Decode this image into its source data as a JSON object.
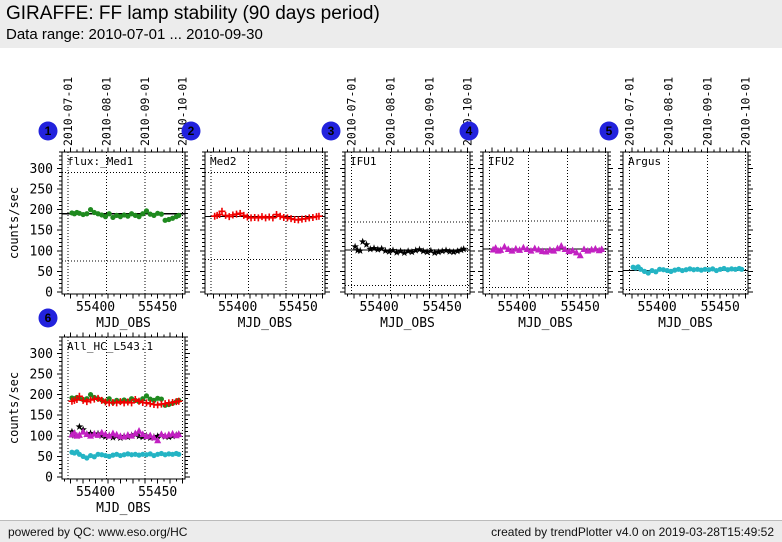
{
  "header": {
    "title": "GIRAFFE: FF lamp stability (90 days period)",
    "subtitle": "Data range: 2010-07-01 ... 2010-09-30"
  },
  "footer": {
    "left": "powered by QC: www.eso.org/HC",
    "right": "created by trendPlotter v4.0 on 2019-03-28T15:49:52"
  },
  "colors": {
    "badge_blue": "#2222dd",
    "header_bg": "#ececec",
    "reference_line": "#000000"
  },
  "chart_data": {
    "type": "scatter",
    "title": "GIRAFFE: FF lamp stability (90 days period)",
    "xlabel": "MJD_OBS",
    "ylabel": "counts/sec",
    "xlim": [
      55373,
      55472
    ],
    "ylim": [
      -5,
      340
    ],
    "xticks": [
      55400,
      55450
    ],
    "yticks": [
      0,
      50,
      100,
      150,
      200,
      250,
      300
    ],
    "grid": "dotted",
    "date_gridlines": [
      {
        "label": "2010-07-01",
        "mjd": 55378
      },
      {
        "label": "2010-08-01",
        "mjd": 55409
      },
      {
        "label": "2010-09-01",
        "mjd": 55440
      },
      {
        "label": "2010-10-01",
        "mjd": 55470
      }
    ],
    "x": [
      55381,
      55383,
      55385,
      55387,
      55390,
      55393,
      55396,
      55399,
      55402,
      55405,
      55408,
      55411,
      55414,
      55417,
      55420,
      55423,
      55426,
      55429,
      55432,
      55435,
      55438,
      55441,
      55444,
      55447,
      55450,
      55453,
      55456,
      55459,
      55462,
      55465,
      55467
    ],
    "series": {
      "med1": {
        "name": "Med1",
        "marker": "circle",
        "color": "#1f8a1f",
        "values": [
          192,
          190,
          193,
          191,
          188,
          190,
          200,
          193,
          190,
          187,
          183,
          190,
          181,
          186,
          183,
          187,
          184,
          190,
          186,
          183,
          190,
          197,
          189,
          186,
          191,
          189,
          174,
          176,
          179,
          183,
          186
        ]
      },
      "med2": {
        "name": "Med2",
        "marker": "plus",
        "color": "#f00000",
        "values": [
          184,
          186,
          188,
          196,
          186,
          183,
          187,
          189,
          191,
          186,
          182,
          180,
          181,
          180,
          183,
          180,
          182,
          180,
          188,
          184,
          181,
          180,
          178,
          176,
          175,
          177,
          178,
          180,
          181,
          183,
          184
        ]
      },
      "ifu1": {
        "name": "IFU1",
        "marker": "star",
        "color": "#000000",
        "values": [
          110,
          101,
          100,
          122,
          115,
          104,
          106,
          103,
          105,
          100,
          98,
          101,
          96,
          99,
          95,
          99,
          97,
          101,
          103,
          99,
          97,
          100,
          95,
          97,
          99,
          101,
          98,
          97,
          99,
          102,
          104
        ]
      },
      "ifu2": {
        "name": "IFU2",
        "marker": "triangle",
        "color": "#c221c2",
        "values": [
          103,
          107,
          100,
          102,
          110,
          104,
          100,
          105,
          102,
          108,
          104,
          100,
          106,
          103,
          99,
          98,
          102,
          100,
          106,
          112,
          104,
          99,
          101,
          96,
          89,
          104,
          100,
          103,
          105,
          101,
          104
        ]
      },
      "argus": {
        "name": "Argus",
        "marker": "circle",
        "color": "#24b4c4",
        "values": [
          60,
          58,
          61,
          55,
          50,
          46,
          52,
          49,
          55,
          54,
          52,
          50,
          53,
          55,
          52,
          54,
          56,
          54,
          55,
          53,
          55,
          54,
          56,
          52,
          55,
          57,
          54,
          56,
          55,
          57,
          55
        ]
      }
    },
    "plots": [
      {
        "number": "1",
        "label": "flux:_Med1",
        "series": [
          "med1"
        ],
        "ref_line": 190,
        "thresholds": [
          290,
          75
        ],
        "show_dates": true,
        "show_yaxis": true
      },
      {
        "number": "2",
        "label": "Med2",
        "series": [
          "med2"
        ],
        "ref_line": 183,
        "thresholds": [
          290,
          79
        ],
        "show_dates": false,
        "show_yaxis": false
      },
      {
        "number": "3",
        "label": "IFU1",
        "series": [
          "ifu1"
        ],
        "ref_line": 102,
        "thresholds": [
          170,
          16
        ],
        "show_dates": true,
        "show_yaxis": false
      },
      {
        "number": "4",
        "label": "IFU2",
        "series": [
          "ifu2"
        ],
        "ref_line": 104,
        "thresholds": [
          172,
          11
        ],
        "show_dates": false,
        "show_yaxis": false
      },
      {
        "number": "5",
        "label": "Argus",
        "series": [
          "argus"
        ],
        "ref_line": 52,
        "thresholds": [
          84,
          6
        ],
        "show_dates": true,
        "show_yaxis": false
      },
      {
        "number": "6",
        "label": "All_HC_L543.1",
        "series": [
          "med1",
          "med2",
          "ifu1",
          "ifu2",
          "argus"
        ],
        "ref_line": null,
        "thresholds": [],
        "show_dates": false,
        "show_yaxis": true
      }
    ]
  }
}
